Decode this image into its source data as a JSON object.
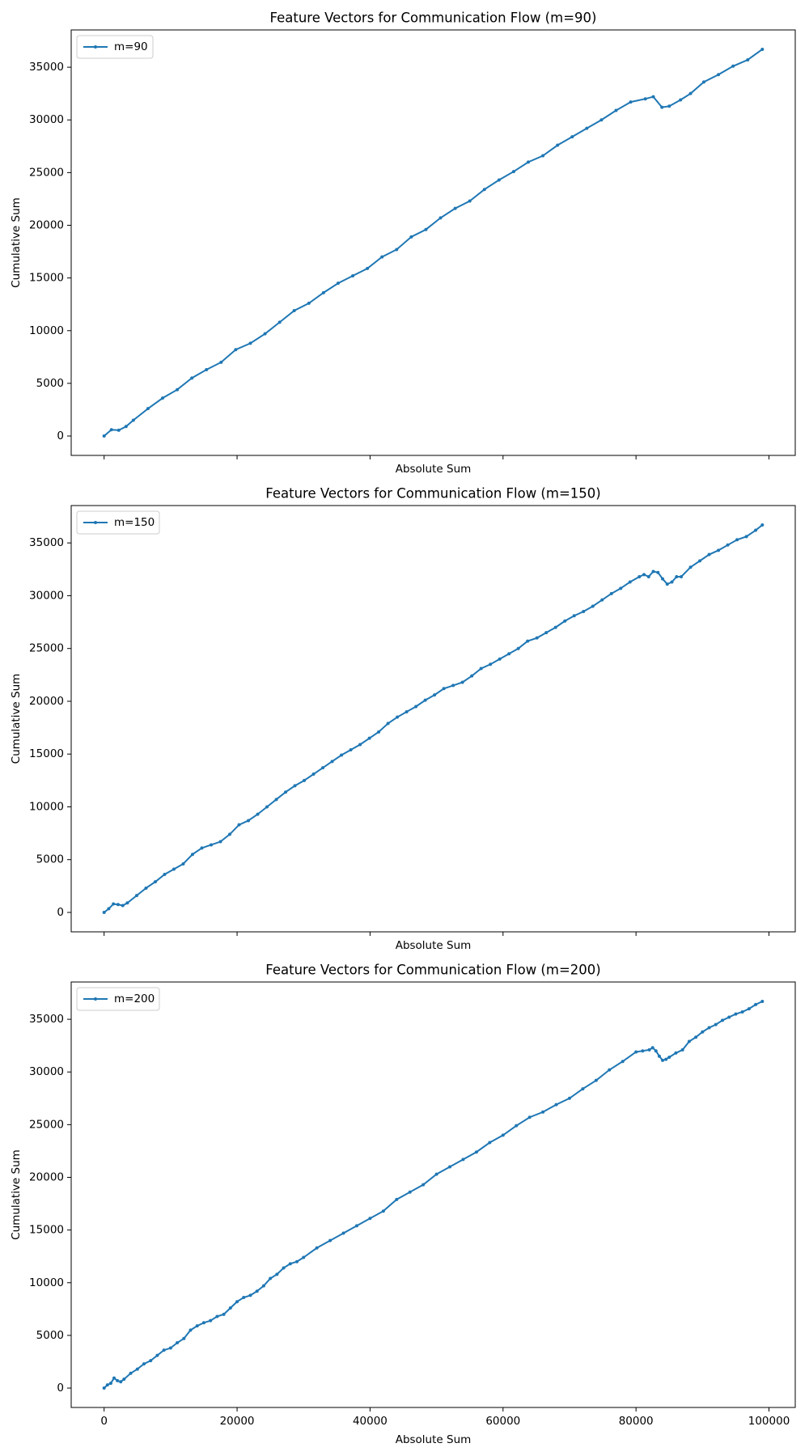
{
  "chart_data": [
    {
      "type": "line",
      "title": "Feature Vectors for Communication Flow (m=90)",
      "xlabel": "Absolute Sum",
      "ylabel": "Cumulative Sum",
      "xlim": [
        -4950,
        103950
      ],
      "ylim": [
        -1840,
        38540
      ],
      "xticks": [
        0,
        20000,
        40000,
        60000,
        80000,
        100000
      ],
      "yticks": [
        0,
        5000,
        10000,
        15000,
        20000,
        25000,
        30000,
        35000
      ],
      "xtick_labels": false,
      "legend": "upper left",
      "x": [
        0,
        1100,
        2200,
        3300,
        4400,
        6600,
        8800,
        11000,
        13200,
        15400,
        17600,
        19800,
        22000,
        24200,
        26400,
        28600,
        30800,
        33000,
        35200,
        37400,
        39600,
        41800,
        44000,
        46200,
        48400,
        50600,
        52800,
        55000,
        57200,
        59400,
        61600,
        63800,
        66000,
        68200,
        70400,
        72600,
        74800,
        77000,
        79200,
        81400,
        82600,
        83900,
        85000,
        86700,
        88200,
        90200,
        92400,
        94600,
        96800,
        99000
      ],
      "series": [
        {
          "name": "m=90",
          "color": "#1f77b4",
          "values": [
            0,
            600,
            550,
            900,
            1500,
            2600,
            3600,
            4400,
            5500,
            6300,
            7000,
            8200,
            8800,
            9700,
            10800,
            11900,
            12600,
            13600,
            14500,
            15200,
            15900,
            17000,
            17700,
            18900,
            19600,
            20700,
            21600,
            22300,
            23400,
            24300,
            25100,
            26000,
            26600,
            27600,
            28400,
            29200,
            30000,
            30900,
            31700,
            32000,
            32200,
            31200,
            31300,
            31900,
            32500,
            33600,
            34300,
            35100,
            35700,
            36700
          ]
        }
      ]
    },
    {
      "type": "line",
      "title": "Feature Vectors for Communication Flow (m=150)",
      "xlabel": "Absolute Sum",
      "ylabel": "Cumulative Sum",
      "xlim": [
        -4950,
        103950
      ],
      "ylim": [
        -1840,
        38540
      ],
      "xticks": [
        0,
        20000,
        40000,
        60000,
        80000,
        100000
      ],
      "yticks": [
        0,
        5000,
        10000,
        15000,
        20000,
        25000,
        30000,
        35000
      ],
      "xtick_labels": false,
      "legend": "upper left",
      "x": [
        0,
        700,
        1400,
        2100,
        2800,
        3500,
        4900,
        6300,
        7700,
        9100,
        10500,
        11900,
        13300,
        14700,
        16100,
        17500,
        18900,
        20300,
        21700,
        23100,
        24500,
        25900,
        27300,
        28700,
        30100,
        31500,
        32900,
        34300,
        35700,
        37100,
        38500,
        39900,
        41300,
        42700,
        44100,
        45500,
        46900,
        48300,
        49700,
        51100,
        52500,
        53900,
        55300,
        56700,
        58100,
        59500,
        60900,
        62300,
        63700,
        65100,
        66500,
        67900,
        69300,
        70700,
        72100,
        73500,
        74900,
        76300,
        77700,
        79100,
        80500,
        81200,
        81900,
        82600,
        83300,
        84000,
        84700,
        85400,
        86100,
        86800,
        88200,
        89600,
        91000,
        92400,
        93800,
        95200,
        96600,
        98000,
        99000
      ],
      "series": [
        {
          "name": "m=150",
          "color": "#1f77b4",
          "values": [
            0,
            350,
            800,
            750,
            650,
            900,
            1600,
            2300,
            2900,
            3600,
            4100,
            4600,
            5500,
            6100,
            6400,
            6700,
            7400,
            8300,
            8700,
            9300,
            10000,
            10700,
            11400,
            12000,
            12500,
            13100,
            13700,
            14300,
            14900,
            15400,
            15900,
            16500,
            17100,
            17900,
            18500,
            19000,
            19500,
            20100,
            20600,
            21200,
            21500,
            21800,
            22400,
            23100,
            23500,
            24000,
            24500,
            25000,
            25700,
            26000,
            26500,
            27000,
            27600,
            28100,
            28500,
            29000,
            29600,
            30200,
            30700,
            31300,
            31800,
            32000,
            31800,
            32300,
            32200,
            31600,
            31100,
            31300,
            31800,
            31800,
            32700,
            33300,
            33900,
            34300,
            34800,
            35300,
            35600,
            36200,
            36700
          ]
        }
      ]
    },
    {
      "type": "line",
      "title": "Feature Vectors for Communication Flow (m=200)",
      "xlabel": "Absolute Sum",
      "ylabel": "Cumulative Sum",
      "xlim": [
        -4950,
        103950
      ],
      "ylim": [
        -1840,
        38540
      ],
      "xticks": [
        0,
        20000,
        40000,
        60000,
        80000,
        100000
      ],
      "yticks": [
        0,
        5000,
        10000,
        15000,
        20000,
        25000,
        30000,
        35000
      ],
      "xtick_labels": true,
      "legend": "upper left",
      "x": [
        0,
        500,
        1000,
        1500,
        2000,
        2500,
        3000,
        4000,
        5000,
        6000,
        7000,
        8000,
        9000,
        10000,
        11000,
        12000,
        13000,
        14000,
        15000,
        16000,
        17000,
        18000,
        19000,
        20000,
        21000,
        22000,
        23000,
        24000,
        25000,
        26000,
        27000,
        28000,
        29000,
        30000,
        32000,
        34000,
        36000,
        38000,
        40000,
        42000,
        44000,
        46000,
        48000,
        50000,
        52000,
        54000,
        56000,
        58000,
        60000,
        62000,
        64000,
        66000,
        68000,
        70000,
        72000,
        74000,
        76000,
        78000,
        80000,
        81000,
        82000,
        82500,
        83000,
        83500,
        84000,
        84500,
        85000,
        86000,
        87000,
        88000,
        89000,
        90000,
        91000,
        92000,
        93000,
        94000,
        95000,
        96000,
        97000,
        98000,
        99000
      ],
      "series": [
        {
          "name": "m=200",
          "color": "#1f77b4",
          "values": [
            0,
            300,
            450,
            950,
            700,
            600,
            850,
            1400,
            1800,
            2300,
            2600,
            3100,
            3600,
            3800,
            4300,
            4700,
            5500,
            5900,
            6200,
            6400,
            6800,
            7000,
            7600,
            8200,
            8600,
            8800,
            9200,
            9700,
            10400,
            10800,
            11400,
            11800,
            12000,
            12400,
            13300,
            14000,
            14700,
            15400,
            16100,
            16800,
            17900,
            18600,
            19300,
            20300,
            21000,
            21700,
            22400,
            23300,
            24000,
            24900,
            25700,
            26200,
            26900,
            27500,
            28400,
            29200,
            30200,
            31000,
            31900,
            32000,
            32100,
            32300,
            32000,
            31500,
            31100,
            31200,
            31400,
            31800,
            32100,
            32900,
            33300,
            33800,
            34200,
            34500,
            34900,
            35200,
            35500,
            35700,
            36000,
            36400,
            36700
          ]
        }
      ]
    }
  ]
}
